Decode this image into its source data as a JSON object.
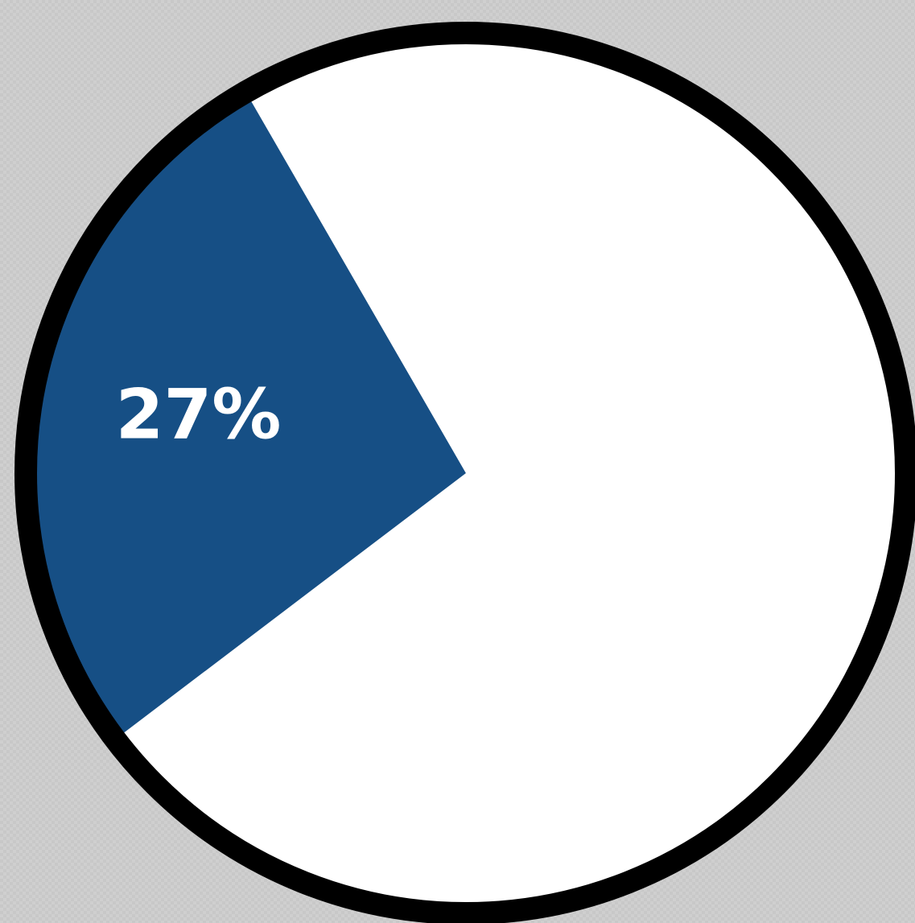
{
  "chart_data": {
    "type": "pie",
    "values": [
      27,
      73
    ],
    "colors": [
      "#164f85",
      "#ffffff"
    ],
    "labels": [
      "27%",
      ""
    ],
    "outline_color": "#000000",
    "start_direction": "upper-left",
    "direction": "counterclockwise"
  }
}
